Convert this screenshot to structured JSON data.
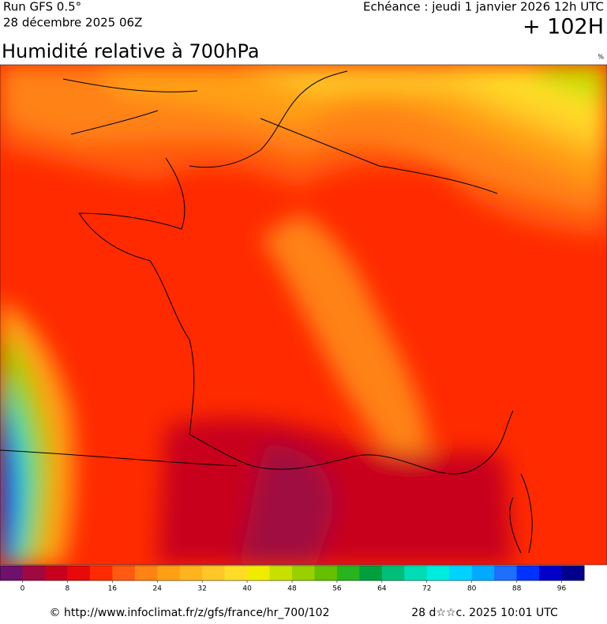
{
  "header": {
    "run": "Run GFS 0.5°",
    "date": "28 décembre 2025 06Z",
    "echeance": "Echéance : jeudi 1 janvier 2026 12h UTC",
    "lead": "+ 102H",
    "title": "Humidité relative à 700hPa",
    "unit": "%"
  },
  "colorbar": {
    "lim": [
      -4,
      100
    ],
    "ticks": [
      0,
      8,
      16,
      24,
      32,
      40,
      48,
      56,
      64,
      72,
      80,
      88,
      96
    ],
    "colors": [
      "#6e106e",
      "#a00840",
      "#c8001e",
      "#e80a0a",
      "#ff2a00",
      "#ff5a10",
      "#ff8214",
      "#ffa014",
      "#ffb41e",
      "#ffc828",
      "#ffdc28",
      "#f0ec00",
      "#c8e000",
      "#98d000",
      "#64c000",
      "#28b41e",
      "#00a03c",
      "#00be78",
      "#00dcb4",
      "#00ecdc",
      "#00d2ff",
      "#00aaff",
      "#1e6eff",
      "#0032ff",
      "#0000c8",
      "#00008c"
    ]
  },
  "footer": {
    "url": "© http://www.infoclimat.fr/z/gfs/france/hr_700/102",
    "timestamp": "28 d☆☆c. 2025 10:01 UTC"
  }
}
